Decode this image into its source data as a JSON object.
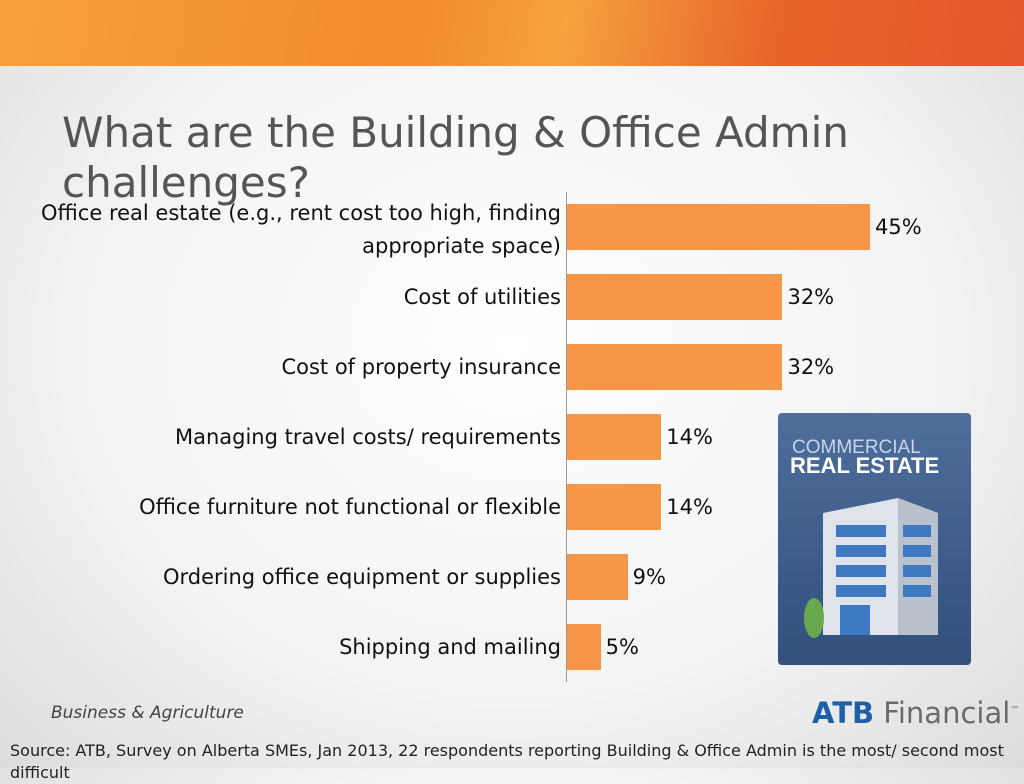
{
  "chart_data": {
    "type": "bar",
    "orientation": "horizontal",
    "title": "What are the Building & Office Admin challenges?",
    "categories": [
      "Office real estate (e.g., rent cost too high, finding appropriate space)",
      "Cost of utilities",
      "Cost of property insurance",
      "Managing travel costs/ requirements",
      "Office furniture not functional or flexible",
      "Ordering office equipment or supplies",
      "Shipping and mailing"
    ],
    "values": [
      45,
      32,
      32,
      14,
      14,
      9,
      5
    ],
    "value_labels": [
      "45%",
      "32%",
      "32%",
      "14%",
      "14%",
      "9%",
      "5%"
    ],
    "color": "#f79646"
  },
  "slide": {
    "footer": "Business & Agriculture",
    "logo_bold": "ATB",
    "logo_text": "Financial",
    "logo_mark": "™",
    "source": "Source: ATB, Survey on Alberta SMEs, Jan 2013, 22 respondents reporting Building & Office Admin is the most/ second most difficult",
    "image_line1": "COMMERCIAL",
    "image_line2": "REAL ESTATE"
  }
}
